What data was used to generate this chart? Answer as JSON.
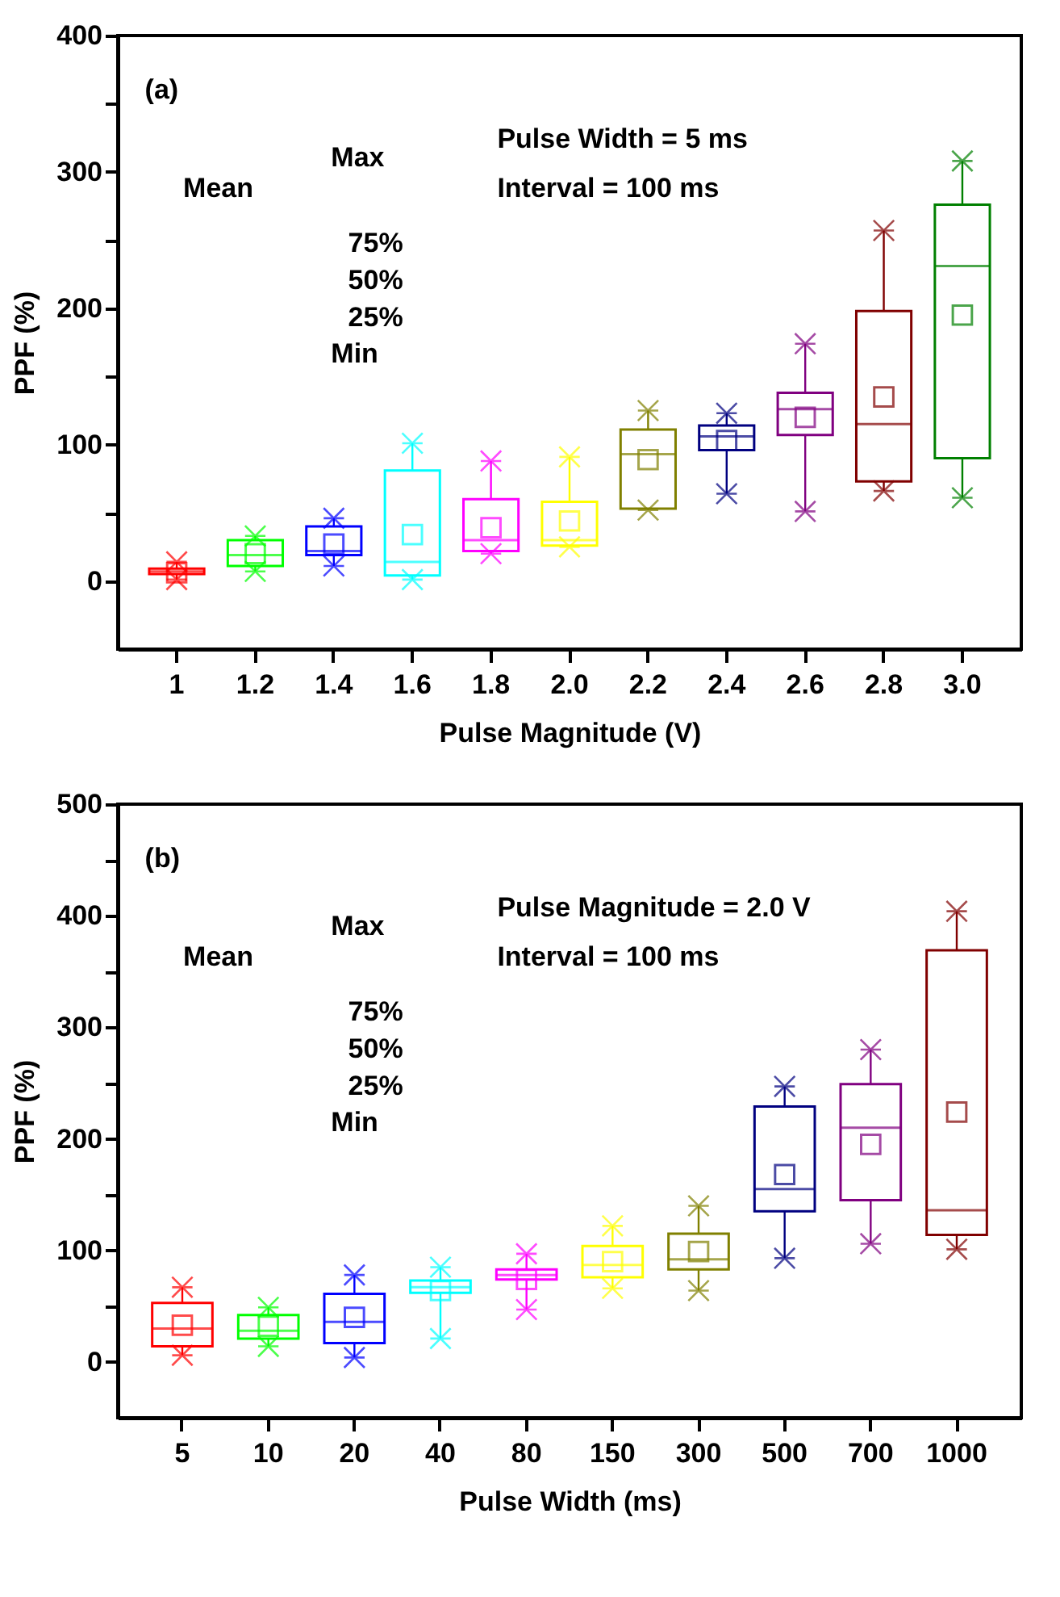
{
  "chart_data": [
    {
      "type": "box",
      "xlabel": "Pulse Magnitude (V)",
      "ylabel": "PPF (%)",
      "categories": [
        "1",
        "1.2",
        "1.4",
        "1.6",
        "1.8",
        "2.0",
        "2.2",
        "2.4",
        "2.6",
        "2.8",
        "3.0"
      ],
      "colors": [
        "#ff0000",
        "#00ff00",
        "#0000ff",
        "#00ffff",
        "#ff00ff",
        "#ffff00",
        "#808000",
        "#000080",
        "#800080",
        "#800000",
        "#008000"
      ],
      "boxes": [
        {
          "low": 1,
          "q1": 5,
          "median": 7,
          "q3": 9,
          "high": 14,
          "mean": 6
        },
        {
          "low": 7,
          "q1": 11,
          "median": 19,
          "q3": 30,
          "high": 33,
          "mean": 20
        },
        {
          "low": 11,
          "q1": 19,
          "median": 22,
          "q3": 40,
          "high": 46,
          "mean": 27
        },
        {
          "low": 1,
          "q1": 4,
          "median": 14,
          "q3": 81,
          "high": 101,
          "mean": 34
        },
        {
          "low": 20,
          "q1": 22,
          "median": 30,
          "q3": 60,
          "high": 88,
          "mean": 39
        },
        {
          "low": 25,
          "q1": 26,
          "median": 30,
          "q3": 58,
          "high": 91,
          "mean": 44
        },
        {
          "low": 52,
          "q1": 53,
          "median": 93,
          "q3": 111,
          "high": 125,
          "mean": 89
        },
        {
          "low": 64,
          "q1": 96,
          "median": 106,
          "q3": 114,
          "high": 123,
          "mean": 103
        },
        {
          "low": 51,
          "q1": 107,
          "median": 126,
          "q3": 138,
          "high": 174,
          "mean": 120
        },
        {
          "low": 66,
          "q1": 73,
          "median": 115,
          "q3": 198,
          "high": 257,
          "mean": 135
        },
        {
          "low": 61,
          "q1": 90,
          "median": 231,
          "q3": 276,
          "high": 308,
          "mean": 195
        }
      ],
      "ylim": [
        -50,
        400
      ],
      "yticks": [
        0,
        {
          "value": 50,
          "label": null
        },
        100,
        {
          "value": 150,
          "label": null
        },
        200,
        {
          "value": 250,
          "label": null
        },
        300,
        {
          "value": 350,
          "label": null
        },
        400
      ],
      "annotations": [
        "(a)",
        "Pulse Width = 5 ms",
        "Interval = 100 ms",
        "Mean",
        "Max",
        "75%",
        "50%",
        "25%",
        "Min"
      ]
    },
    {
      "type": "box",
      "xlabel": "Pulse Width (ms)",
      "ylabel": "PPF (%)",
      "categories": [
        "5",
        "10",
        "20",
        "40",
        "80",
        "150",
        "300",
        "500",
        "700",
        "1000"
      ],
      "colors": [
        "#ff0000",
        "#00ff00",
        "#0000ff",
        "#00ffff",
        "#ff00ff",
        "#ffff00",
        "#808000",
        "#000080",
        "#800080",
        "#800000"
      ],
      "boxes": [
        {
          "low": 6,
          "q1": 14,
          "median": 30,
          "q3": 53,
          "high": 67,
          "mean": 33
        },
        {
          "low": 14,
          "q1": 21,
          "median": 28,
          "q3": 42,
          "high": 49,
          "mean": 32
        },
        {
          "low": 4,
          "q1": 17,
          "median": 36,
          "q3": 61,
          "high": 78,
          "mean": 40
        },
        {
          "low": 21,
          "q1": 62,
          "median": 67,
          "q3": 73,
          "high": 85,
          "mean": 64
        },
        {
          "low": 47,
          "q1": 74,
          "median": 78,
          "q3": 83,
          "high": 97,
          "mean": 74
        },
        {
          "low": 66,
          "q1": 76,
          "median": 87,
          "q3": 104,
          "high": 122,
          "mean": 90
        },
        {
          "low": 64,
          "q1": 83,
          "median": 92,
          "q3": 115,
          "high": 140,
          "mean": 99
        },
        {
          "low": 93,
          "q1": 135,
          "median": 155,
          "q3": 229,
          "high": 247,
          "mean": 168
        },
        {
          "low": 106,
          "q1": 145,
          "median": 210,
          "q3": 249,
          "high": 280,
          "mean": 195
        },
        {
          "low": 101,
          "q1": 114,
          "median": 136,
          "q3": 369,
          "high": 404,
          "mean": 224
        }
      ],
      "ylim": [
        -50,
        500
      ],
      "yticks": [
        0,
        {
          "value": 50,
          "label": null
        },
        100,
        {
          "value": 150,
          "label": null
        },
        200,
        {
          "value": 250,
          "label": null
        },
        300,
        {
          "value": 350,
          "label": null
        },
        400,
        {
          "value": 450,
          "label": null
        },
        500
      ],
      "annotations": [
        "(b)",
        "Pulse Magnitude = 2.0 V",
        "Interval = 100 ms",
        "Mean",
        "Max",
        "75%",
        "50%",
        "25%",
        "Min"
      ]
    }
  ]
}
